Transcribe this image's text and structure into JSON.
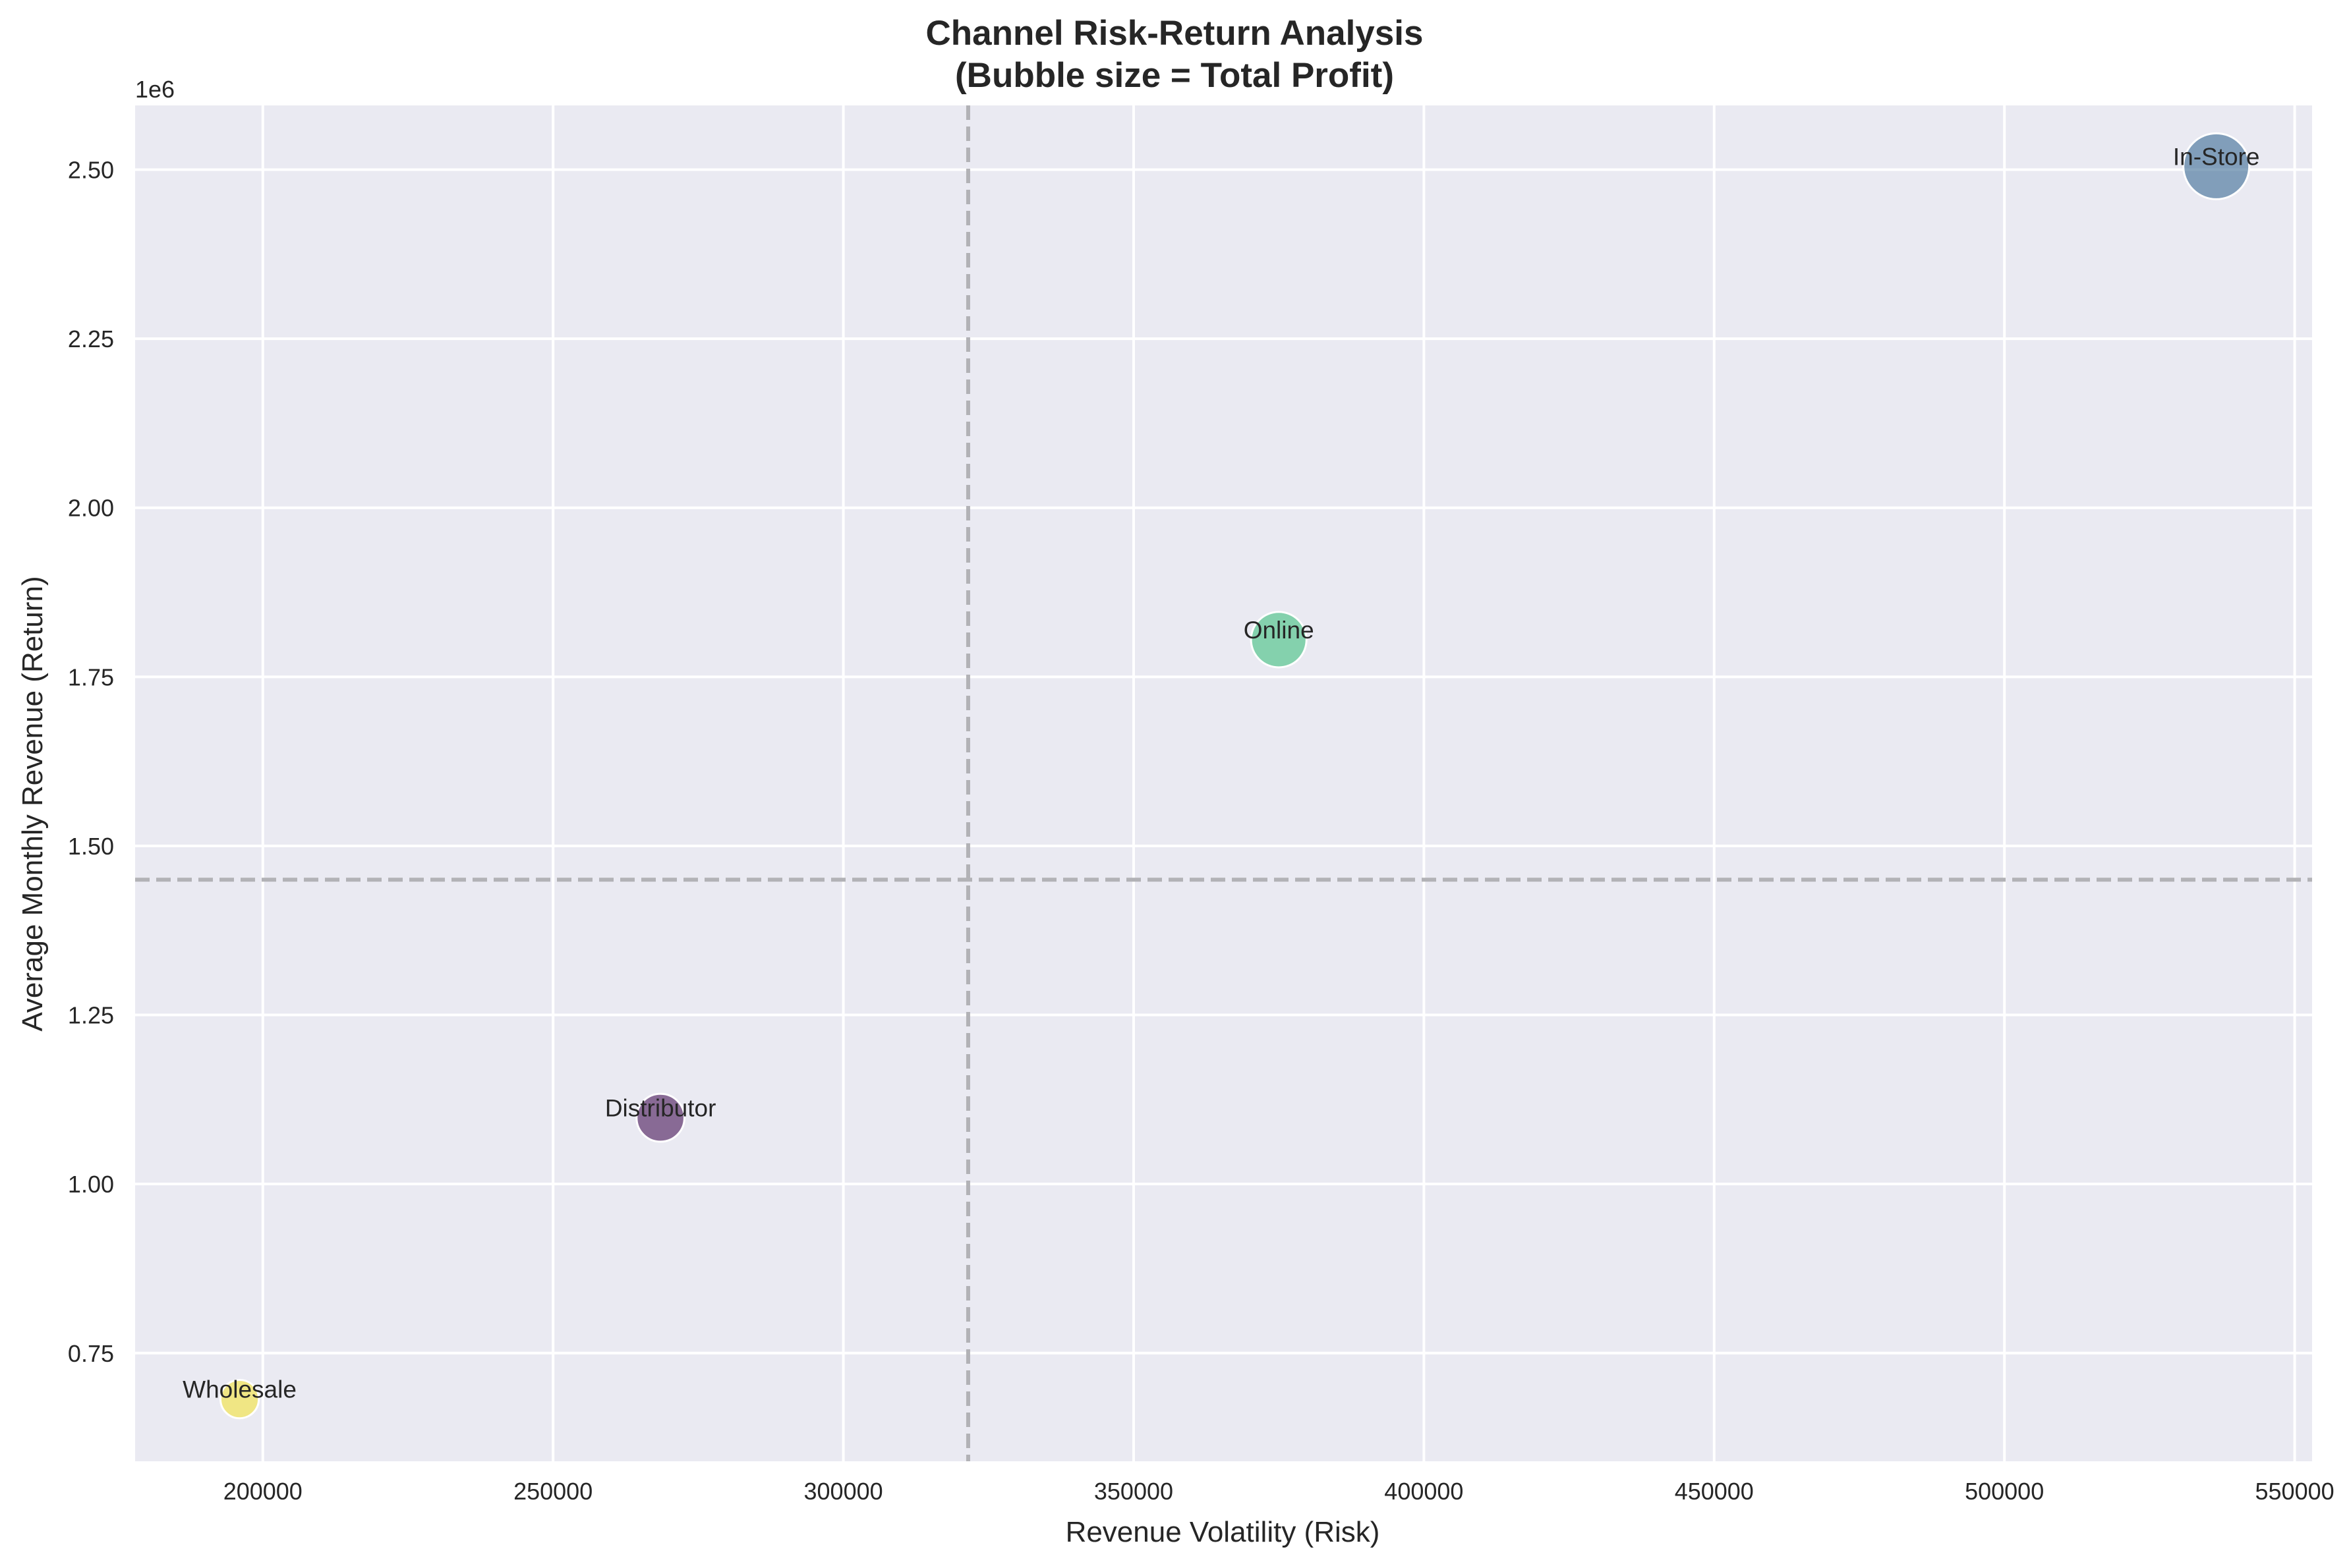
{
  "chart_data": {
    "type": "scatter",
    "title": "Channel Risk-Return Analysis",
    "subtitle": "(Bubble size = Total Profit)",
    "xlabel": "Revenue Volatility (Risk)",
    "ylabel": "Average Monthly Revenue (Return)",
    "y_offset_label": "1e6",
    "xlim": [
      178000,
      553000
    ],
    "ylim": [
      590000,
      2595000
    ],
    "x_ticks": [
      200000,
      250000,
      300000,
      350000,
      400000,
      450000,
      500000,
      550000
    ],
    "x_tick_labels": [
      "200000",
      "250000",
      "300000",
      "350000",
      "400000",
      "450000",
      "500000",
      "550000"
    ],
    "y_ticks": [
      750000,
      1000000,
      1250000,
      1500000,
      1750000,
      2000000,
      2250000,
      2500000
    ],
    "y_tick_labels": [
      "0.75",
      "1.00",
      "1.25",
      "1.50",
      "1.75",
      "2.00",
      "2.25",
      "2.50"
    ],
    "grid": true,
    "reference_lines": {
      "x": 321500,
      "y": 1450000
    },
    "points": [
      {
        "name": "In-Store",
        "x": 536500,
        "y": 2505000,
        "color": "#3b6a95",
        "size": 1.0
      },
      {
        "name": "Online",
        "x": 375000,
        "y": 1805000,
        "color": "#3fbf7f",
        "size": 0.78
      },
      {
        "name": "Distributor",
        "x": 268500,
        "y": 1098000,
        "color": "#461457",
        "size": 0.62
      },
      {
        "name": "Wholesale",
        "x": 196000,
        "y": 682000,
        "color": "#f4e23a",
        "size": 0.42
      }
    ],
    "colors": {
      "plot_background": "#eaeaf2",
      "grid": "#ffffff",
      "reference_line": "#b2b2b6",
      "text": "#262626"
    }
  }
}
